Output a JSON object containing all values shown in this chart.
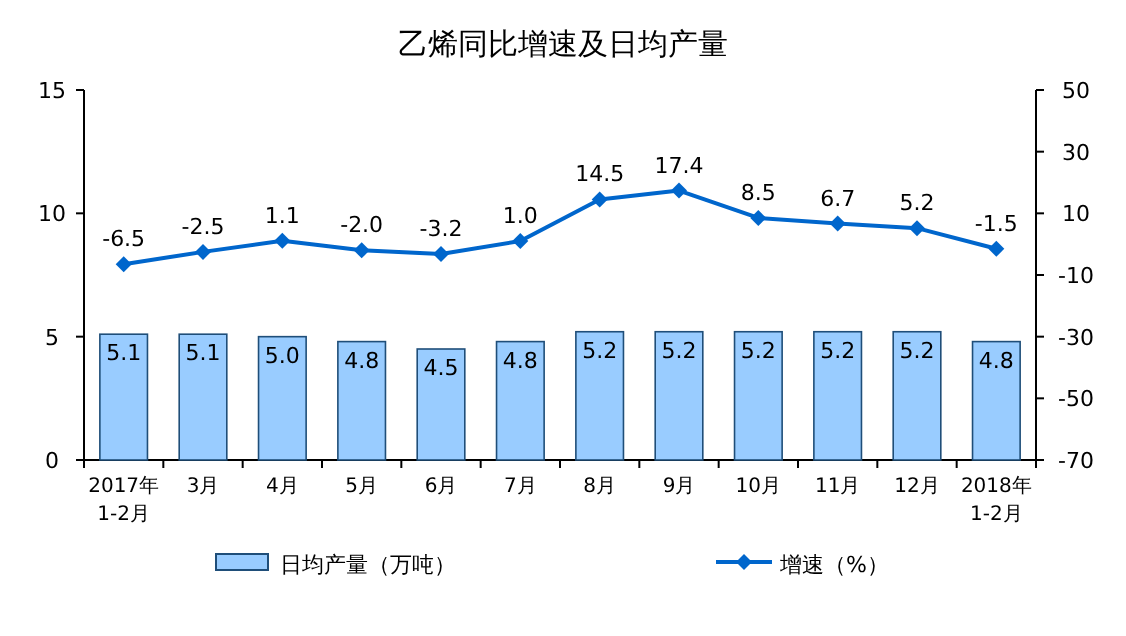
{
  "chart_data": {
    "type": "bar",
    "title": "乙烯同比增速及日均产量",
    "categories": [
      "2017年\n1-2月",
      "3月",
      "4月",
      "5月",
      "6月",
      "7月",
      "8月",
      "9月",
      "10月",
      "11月",
      "12月",
      "2018年\n1-2月"
    ],
    "series": [
      {
        "name": "日均产量（万吨）",
        "color": "#99ccff",
        "values": [
          5.1,
          5.1,
          5.0,
          4.8,
          4.5,
          4.8,
          5.2,
          5.2,
          5.2,
          5.2,
          5.2,
          4.8
        ],
        "value_labels": [
          "5.1",
          "5.1",
          "5.0",
          "4.8",
          "4.5",
          "4.8",
          "5.2",
          "5.2",
          "5.2",
          "5.2",
          "5.2",
          "4.8"
        ]
      },
      {
        "name": "增速（%）",
        "type": "line",
        "axis": "y2",
        "color": "#0066cc",
        "marker": "diamond",
        "values": [
          -6.5,
          -2.5,
          1.1,
          -2.0,
          -3.2,
          1.0,
          14.5,
          17.4,
          8.5,
          6.7,
          5.2,
          -1.5
        ],
        "value_labels": [
          "-6.5",
          "-2.5",
          "1.1",
          "-2.0",
          "-3.2",
          "1.0",
          "14.5",
          "17.4",
          "8.5",
          "6.7",
          "5.2",
          "-1.5"
        ]
      }
    ],
    "ylim": [
      0,
      15
    ],
    "yticks": [
      0,
      5,
      10,
      15
    ],
    "y2lim": [
      -70,
      50
    ],
    "y2ticks": [
      -70,
      -50,
      -30,
      -10,
      10,
      30,
      50
    ],
    "grid": false,
    "legend": "bottom"
  }
}
